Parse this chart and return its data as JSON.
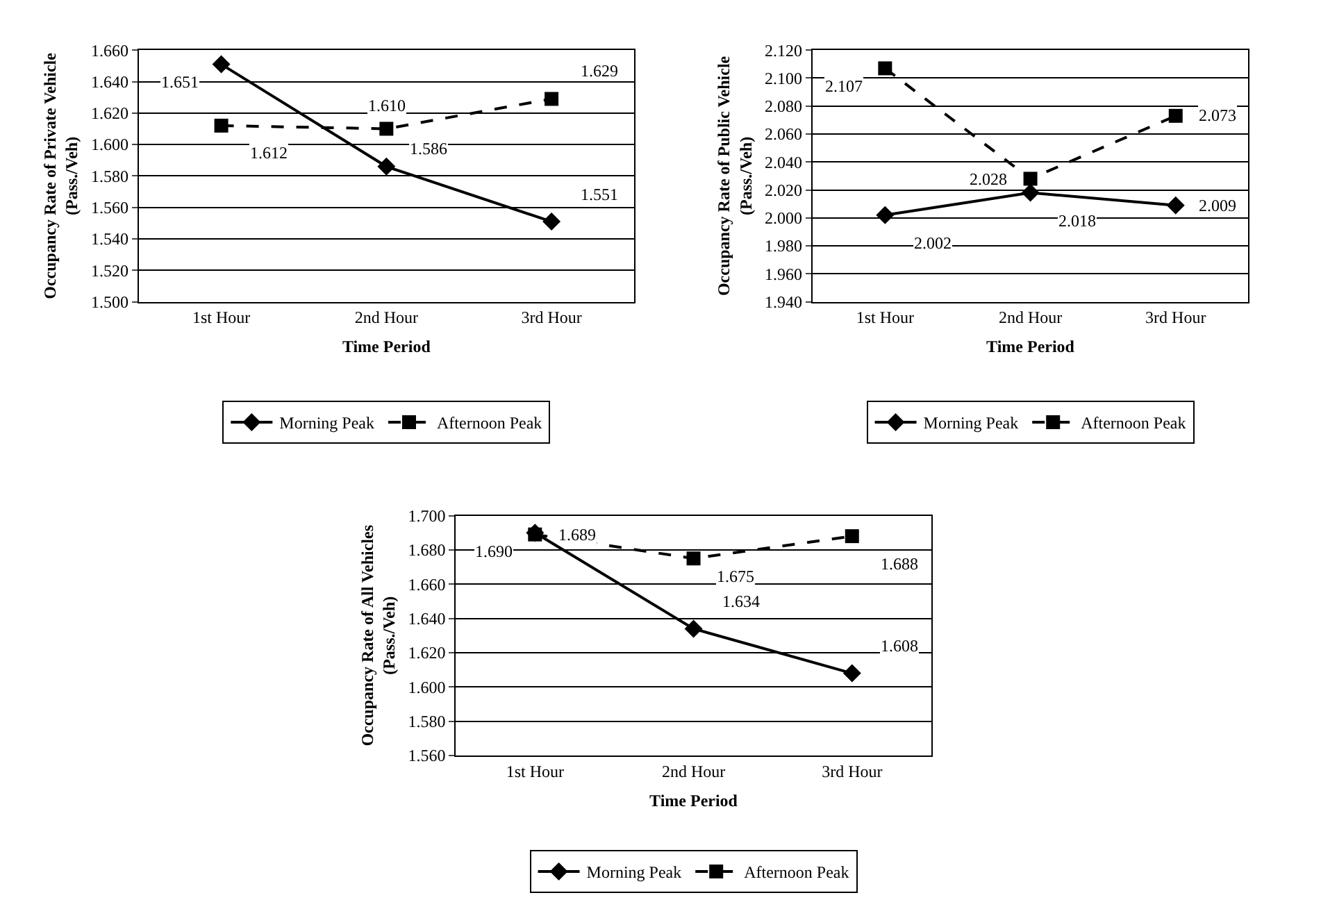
{
  "chart_data": [
    {
      "type": "line",
      "categories": [
        "1st Hour",
        "2nd Hour",
        "3rd Hour"
      ],
      "xlabel": "Time Period",
      "ylabel": "Occupancy Rate of Private Vehicle\n(Pass./Veh)",
      "ylim": [
        1.5,
        1.66
      ],
      "yticks": [
        {
          "value": 1.5,
          "label": "1.500"
        },
        {
          "value": 1.52,
          "label": "1.520"
        },
        {
          "value": 1.54,
          "label": "1.540"
        },
        {
          "value": 1.56,
          "label": "1.560"
        },
        {
          "value": 1.58,
          "label": "1.580"
        },
        {
          "value": 1.6,
          "label": "1.600"
        },
        {
          "value": 1.62,
          "label": "1.620"
        },
        {
          "value": 1.64,
          "label": "1.640"
        },
        {
          "value": 1.66,
          "label": "1.660"
        }
      ],
      "grid": "y",
      "legend": "bottom",
      "series": [
        {
          "name": "Morning Peak",
          "color": "#000000",
          "values": [
            1.651,
            1.586,
            1.551
          ],
          "value_labels": [
            "1.651",
            "1.586",
            "1.551"
          ],
          "marker": "diamond",
          "line_style": "solid"
        },
        {
          "name": "Afternoon Peak",
          "color": "#000000",
          "values": [
            1.612,
            1.61,
            1.629
          ],
          "value_labels": [
            "1.612",
            "1.610",
            "1.629"
          ],
          "marker": "square",
          "line_style": "dashed"
        }
      ]
    },
    {
      "type": "line",
      "categories": [
        "1st Hour",
        "2nd Hour",
        "3rd Hour"
      ],
      "xlabel": "Time Period",
      "ylabel": "Occupancy Rate of Public Vehicle\n(Pass./Veh)",
      "ylim": [
        1.94,
        2.12
      ],
      "yticks": [
        {
          "value": 1.94,
          "label": "1.940"
        },
        {
          "value": 1.96,
          "label": "1.960"
        },
        {
          "value": 1.98,
          "label": "1.980"
        },
        {
          "value": 2.0,
          "label": "2.000"
        },
        {
          "value": 2.02,
          "label": "2.020"
        },
        {
          "value": 2.04,
          "label": "2.040"
        },
        {
          "value": 2.06,
          "label": "2.060"
        },
        {
          "value": 2.08,
          "label": "2.080"
        },
        {
          "value": 2.1,
          "label": "2.100"
        },
        {
          "value": 2.12,
          "label": "2.120"
        }
      ],
      "grid": "y",
      "legend": "bottom",
      "series": [
        {
          "name": "Morning Peak",
          "color": "#000000",
          "values": [
            2.002,
            2.018,
            2.009
          ],
          "value_labels": [
            "2.002",
            "2.018",
            "2.009"
          ],
          "marker": "diamond",
          "line_style": "solid"
        },
        {
          "name": "Afternoon Peak",
          "color": "#000000",
          "values": [
            2.107,
            2.028,
            2.073
          ],
          "value_labels": [
            "2.107",
            "2.028",
            "2.073"
          ],
          "marker": "square",
          "line_style": "dashed"
        }
      ]
    },
    {
      "type": "line",
      "categories": [
        "1st Hour",
        "2nd Hour",
        "3rd Hour"
      ],
      "xlabel": "Time Period",
      "ylabel": "Occupancy Rate of All Vehicles\n(Pass./Veh)",
      "ylim": [
        1.56,
        1.7
      ],
      "yticks": [
        {
          "value": 1.56,
          "label": "1.560"
        },
        {
          "value": 1.58,
          "label": "1.580"
        },
        {
          "value": 1.6,
          "label": "1.600"
        },
        {
          "value": 1.62,
          "label": "1.620"
        },
        {
          "value": 1.64,
          "label": "1.640"
        },
        {
          "value": 1.66,
          "label": "1.660"
        },
        {
          "value": 1.68,
          "label": "1.680"
        },
        {
          "value": 1.7,
          "label": "1.700"
        }
      ],
      "grid": "y",
      "legend": "bottom",
      "series": [
        {
          "name": "Morning Peak",
          "color": "#000000",
          "values": [
            1.69,
            1.634,
            1.608
          ],
          "value_labels": [
            "1.690",
            "1.634",
            "1.608"
          ],
          "marker": "diamond",
          "line_style": "solid"
        },
        {
          "name": "Afternoon Peak",
          "color": "#000000",
          "values": [
            1.689,
            1.675,
            1.688
          ],
          "value_labels": [
            "1.689",
            "1.675",
            "1.688"
          ],
          "marker": "square",
          "line_style": "dashed"
        }
      ]
    }
  ]
}
